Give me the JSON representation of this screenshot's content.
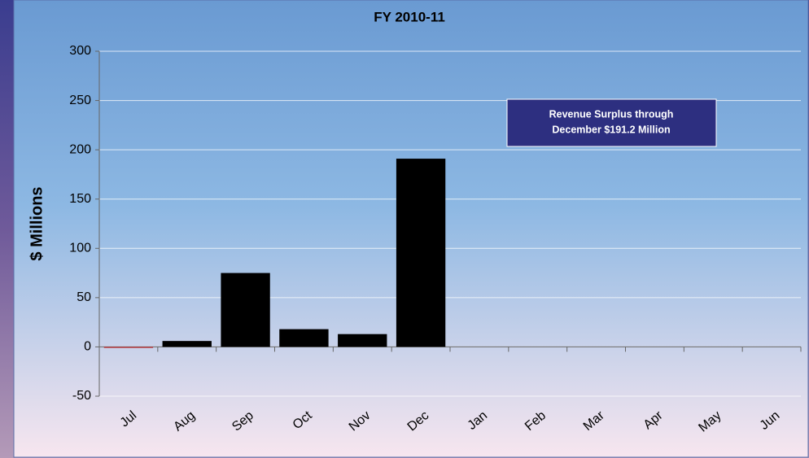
{
  "chart_data": {
    "type": "bar",
    "title": "FY 2010-11",
    "y_label": "$ Millions",
    "categories": [
      "Jul",
      "Aug",
      "Sep",
      "Oct",
      "Nov",
      "Dec",
      "Jan",
      "Feb",
      "Mar",
      "Apr",
      "May",
      "Jun"
    ],
    "values": [
      -1,
      6,
      75,
      18,
      13,
      191,
      null,
      null,
      null,
      null,
      null,
      null
    ],
    "color": "#000000",
    "negative_color": "#c0282d",
    "ylim": [
      -50,
      300
    ],
    "yticks": [
      -50,
      0,
      50,
      100,
      150,
      200,
      250,
      300
    ],
    "grid": true,
    "annotation": [
      "Revenue Surplus through",
      "December $191.2 Million"
    ]
  }
}
